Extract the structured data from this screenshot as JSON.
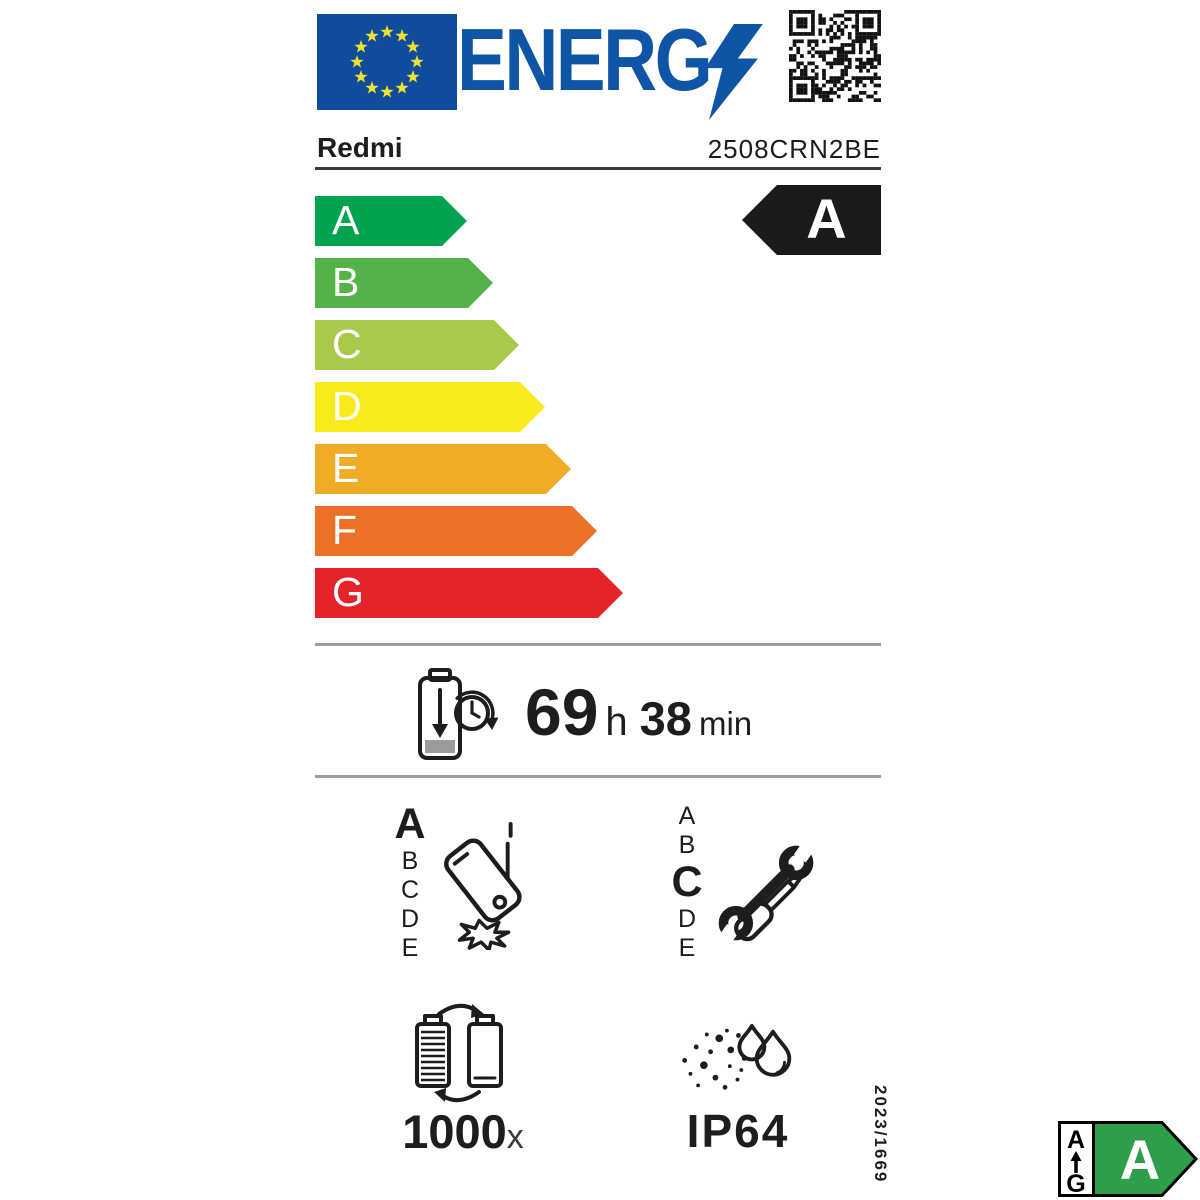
{
  "header": {
    "logo_text": "ENERG",
    "brand": "Redmi",
    "model": "2508CRN2BE"
  },
  "energy_scale": {
    "rated_class": "A",
    "classes": [
      {
        "label": "A",
        "color": "#00a34f"
      },
      {
        "label": "B",
        "color": "#54b348"
      },
      {
        "label": "C",
        "color": "#a9c94b"
      },
      {
        "label": "D",
        "color": "#f9ea1c"
      },
      {
        "label": "E",
        "color": "#f0ab27"
      },
      {
        "label": "F",
        "color": "#ea7126"
      },
      {
        "label": "G",
        "color": "#e4232a"
      }
    ]
  },
  "battery_endurance": {
    "hours": "69",
    "hours_unit": "h",
    "minutes": "38",
    "minutes_unit": "min"
  },
  "free_fall_reliability": {
    "scale": [
      "A",
      "B",
      "C",
      "D",
      "E"
    ],
    "rated_class": "A"
  },
  "repairability": {
    "scale": [
      "A",
      "B",
      "C",
      "D",
      "E"
    ],
    "rated_class": "C"
  },
  "battery_cycles": {
    "value": "1000",
    "unit": "x"
  },
  "ingress_protection": {
    "rating": "IP64"
  },
  "regulation_number": "2023/1669",
  "mini_scale_badge": {
    "best": "A",
    "worst": "G",
    "rated": "A",
    "arrow_color": "#2e9e4b"
  },
  "colors": {
    "eu_blue": "#0f4d9c",
    "logo_blue": "#0e56a5",
    "star_yellow": "#f0e12e",
    "ink": "#1d1d1b",
    "divider": "#9c9c9c",
    "rated_arrow_bg": "#1a1a18"
  }
}
